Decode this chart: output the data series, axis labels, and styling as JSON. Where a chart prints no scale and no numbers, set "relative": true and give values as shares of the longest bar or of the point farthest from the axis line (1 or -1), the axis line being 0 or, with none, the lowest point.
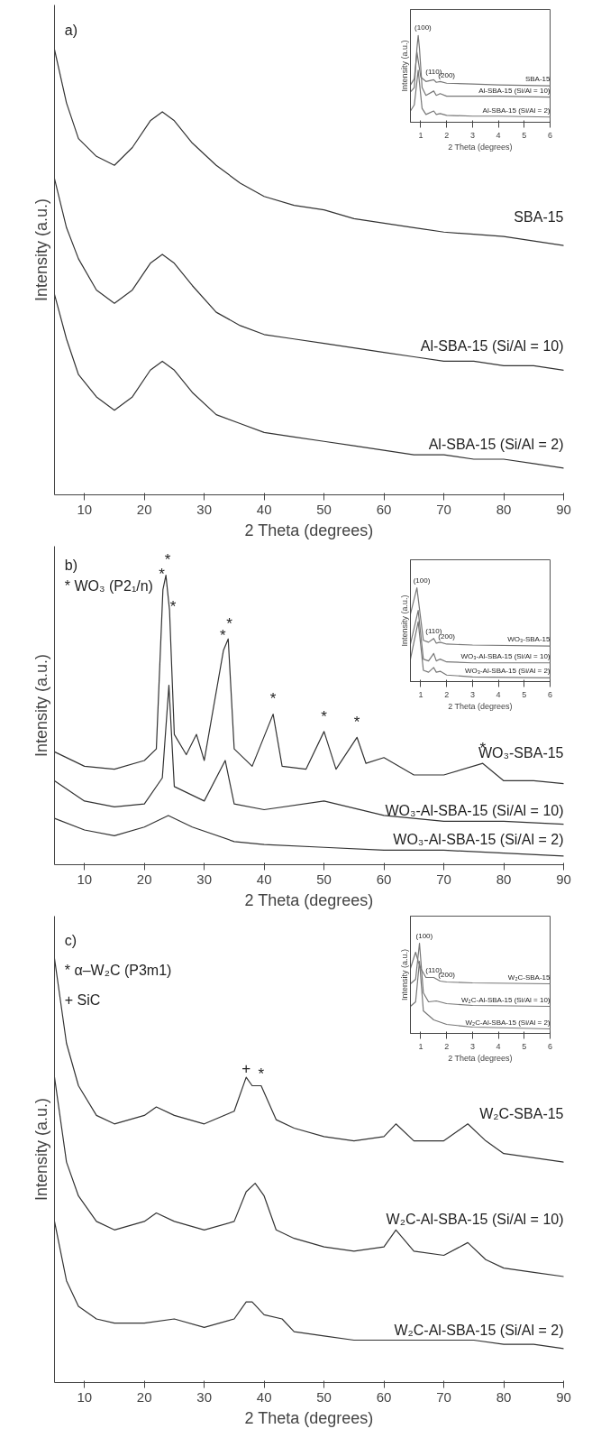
{
  "chart_data": [
    {
      "type": "line",
      "relative": true,
      "xlabel": "2 Theta (degrees)",
      "ylabel": "Intensity (a.u.)",
      "xlim": [
        5,
        90
      ],
      "xticks": [
        10,
        20,
        30,
        40,
        50,
        60,
        70,
        80,
        90
      ],
      "annotations": [
        "a)"
      ],
      "series": [
        {
          "name": "SBA-15",
          "color": "#333333",
          "x": [
            5,
            7,
            9,
            12,
            15,
            18,
            21,
            23,
            25,
            28,
            32,
            36,
            40,
            45,
            50,
            55,
            60,
            65,
            70,
            75,
            80,
            85,
            90
          ],
          "values": [
            1.0,
            0.88,
            0.8,
            0.76,
            0.74,
            0.78,
            0.84,
            0.86,
            0.84,
            0.79,
            0.74,
            0.7,
            0.67,
            0.65,
            0.64,
            0.62,
            0.61,
            0.6,
            0.59,
            0.585,
            0.58,
            0.57,
            0.56
          ]
        },
        {
          "name": "Al-SBA-15 (Si/Al = 10)",
          "color": "#333333",
          "x": [
            5,
            7,
            9,
            12,
            15,
            18,
            21,
            23,
            25,
            28,
            32,
            36,
            40,
            45,
            50,
            55,
            60,
            65,
            70,
            75,
            80,
            85,
            90
          ],
          "values": [
            0.71,
            0.6,
            0.53,
            0.46,
            0.43,
            0.46,
            0.52,
            0.54,
            0.52,
            0.47,
            0.41,
            0.38,
            0.36,
            0.35,
            0.34,
            0.33,
            0.32,
            0.31,
            0.3,
            0.3,
            0.29,
            0.29,
            0.28
          ]
        },
        {
          "name": "Al-SBA-15 (Si/Al = 2)",
          "color": "#333333",
          "x": [
            5,
            7,
            9,
            12,
            15,
            18,
            21,
            23,
            25,
            28,
            32,
            36,
            40,
            45,
            50,
            55,
            60,
            65,
            70,
            75,
            80,
            85,
            90
          ],
          "values": [
            0.45,
            0.35,
            0.27,
            0.22,
            0.19,
            0.22,
            0.28,
            0.3,
            0.28,
            0.23,
            0.18,
            0.16,
            0.14,
            0.13,
            0.12,
            0.11,
            0.1,
            0.09,
            0.09,
            0.08,
            0.08,
            0.07,
            0.06
          ]
        }
      ]
    },
    {
      "type": "line",
      "relative": true,
      "xlabel": "2 Theta (degrees)",
      "ylabel": "Intensity (a.u.)",
      "xlim": [
        0.6,
        6
      ],
      "xticks": [
        1,
        2,
        3,
        4,
        5,
        6
      ],
      "annotations": [
        {
          "text": "(100)",
          "x": 0.9,
          "y": 1.0
        },
        {
          "text": "(110)",
          "x": 1.5,
          "y": 0.49
        },
        {
          "text": "(200)",
          "x": 2,
          "y": 0.45
        }
      ],
      "series": [
        {
          "name": "SBA-15",
          "color": "#777777",
          "x": [
            0.6,
            0.75,
            0.85,
            1.0,
            1.2,
            1.5,
            1.6,
            1.75,
            2,
            3,
            4,
            6
          ],
          "values": [
            0.43,
            0.5,
            0.81,
            0.52,
            0.47,
            0.49,
            0.46,
            0.47,
            0.45,
            0.44,
            0.43,
            0.42
          ]
        },
        {
          "name": "Al-SBA-15 (Si/Al = 10)",
          "color": "#777777",
          "x": [
            0.6,
            0.75,
            0.85,
            0.9,
            0.95,
            1.05,
            1.2,
            1.5,
            1.6,
            1.75,
            2,
            3,
            4,
            6
          ],
          "values": [
            0.35,
            0.4,
            0.85,
            1.0,
            0.85,
            0.4,
            0.31,
            0.36,
            0.31,
            0.33,
            0.3,
            0.3,
            0.3,
            0.29
          ]
        },
        {
          "name": "Al-SBA-15 (Si/Al = 2)",
          "color": "#777777",
          "x": [
            0.6,
            0.75,
            0.9,
            1.05,
            1.2,
            1.5,
            1.6,
            1.75,
            2,
            3,
            4,
            6
          ],
          "values": [
            0.13,
            0.2,
            0.6,
            0.16,
            0.09,
            0.13,
            0.09,
            0.1,
            0.08,
            0.07,
            0.07,
            0.06
          ]
        }
      ]
    },
    {
      "type": "line",
      "relative": true,
      "xlabel": "2 Theta (degrees)",
      "ylabel": "Intensity (a.u.)",
      "xlim": [
        5,
        90
      ],
      "xticks": [
        10,
        20,
        30,
        40,
        50,
        60,
        70,
        80,
        90
      ],
      "annotations": [
        "b)",
        "* WO₃ (P2₁/n)",
        {
          "text": "*",
          "x": 22.9,
          "y": 0.96
        },
        {
          "text": "*",
          "x": 23.9,
          "y": 1.01
        },
        {
          "text": "*",
          "x": 24.8,
          "y": 0.85
        },
        {
          "text": "*",
          "x": 33.1,
          "y": 0.75
        },
        {
          "text": "*",
          "x": 34.2,
          "y": 0.79
        },
        {
          "text": "*",
          "x": 41.5,
          "y": 0.53
        },
        {
          "text": "*",
          "x": 50,
          "y": 0.47
        },
        {
          "text": "*",
          "x": 55.5,
          "y": 0.45
        },
        {
          "text": "*",
          "x": 76.5,
          "y": 0.36
        }
      ],
      "series": [
        {
          "name": "WO₃-SBA-15",
          "color": "#333333",
          "x": [
            5,
            10,
            15,
            20,
            22,
            23.1,
            23.6,
            24.2,
            25,
            27,
            28.7,
            30,
            33.2,
            34,
            35,
            38,
            41.5,
            43,
            47,
            50,
            52,
            55.5,
            57,
            60,
            65,
            70,
            76.5,
            80,
            85,
            90
          ],
          "values": [
            0.39,
            0.34,
            0.33,
            0.36,
            0.4,
            0.95,
            1.0,
            0.88,
            0.45,
            0.38,
            0.45,
            0.36,
            0.74,
            0.78,
            0.4,
            0.34,
            0.52,
            0.34,
            0.33,
            0.46,
            0.33,
            0.44,
            0.35,
            0.37,
            0.31,
            0.31,
            0.35,
            0.29,
            0.29,
            0.28
          ]
        },
        {
          "name": "WO₃-Al-SBA-15 (Si/Al = 10)",
          "color": "#333333",
          "x": [
            5,
            10,
            15,
            20,
            23,
            24.1,
            25,
            30,
            33.5,
            35,
            40,
            50,
            60,
            70,
            80,
            90
          ],
          "values": [
            0.29,
            0.22,
            0.2,
            0.21,
            0.3,
            0.62,
            0.27,
            0.22,
            0.36,
            0.21,
            0.19,
            0.22,
            0.17,
            0.15,
            0.15,
            0.14
          ]
        },
        {
          "name": "WO₃-Al-SBA-15 (Si/Al = 2)",
          "color": "#333333",
          "x": [
            5,
            10,
            15,
            20,
            24,
            28,
            35,
            40,
            50,
            60,
            70,
            80,
            90
          ],
          "values": [
            0.16,
            0.12,
            0.1,
            0.13,
            0.17,
            0.13,
            0.08,
            0.07,
            0.06,
            0.05,
            0.05,
            0.04,
            0.03
          ]
        }
      ]
    },
    {
      "type": "line",
      "relative": true,
      "xlabel": "2 Theta (degrees)",
      "ylabel": "Intensity (a.u.)",
      "xlim": [
        0.6,
        6
      ],
      "xticks": [
        1,
        2,
        3,
        4,
        5,
        6
      ],
      "annotations": [
        {
          "text": "(100)",
          "x": 0.85,
          "y": 1.0
        },
        {
          "text": "(110)",
          "x": 1.5,
          "y": 0.46
        },
        {
          "text": "(200)",
          "x": 2,
          "y": 0.4
        }
      ],
      "series": [
        {
          "name": "WO₃-SBA-15",
          "color": "#777777",
          "x": [
            0.6,
            0.85,
            1.1,
            1.3,
            1.5,
            1.6,
            1.75,
            2,
            3,
            6
          ],
          "values": [
            0.72,
            1.0,
            0.44,
            0.42,
            0.46,
            0.41,
            0.42,
            0.4,
            0.39,
            0.38
          ]
        },
        {
          "name": "WO₃-Al-SBA-15 (Si/Al = 10)",
          "color": "#777777",
          "x": [
            0.6,
            0.9,
            1.1,
            1.3,
            1.5,
            1.6,
            1.75,
            2,
            3,
            6
          ],
          "values": [
            0.4,
            0.76,
            0.24,
            0.22,
            0.3,
            0.22,
            0.24,
            0.21,
            0.2,
            0.2
          ]
        },
        {
          "name": "WO₃-Al-SBA-15 (Si/Al = 2)",
          "color": "#777777",
          "x": [
            0.6,
            0.9,
            1.1,
            1.3,
            1.5,
            1.6,
            1.75,
            2,
            3,
            6
          ],
          "values": [
            0.24,
            0.64,
            0.12,
            0.1,
            0.15,
            0.1,
            0.11,
            0.07,
            0.05,
            0.04
          ]
        }
      ]
    },
    {
      "type": "line",
      "relative": true,
      "xlabel": "2 Theta (degrees)",
      "ylabel": "Intensity (a.u.)",
      "xlim": [
        5,
        90
      ],
      "xticks": [
        10,
        20,
        30,
        40,
        50,
        60,
        70,
        80,
        90
      ],
      "annotations": [
        "c)",
        "* α–W₂C (P3m1)",
        "+ SiC",
        {
          "text": "+",
          "x": 37,
          "y": 0.72
        },
        {
          "text": "*",
          "x": 39.5,
          "y": 0.7
        }
      ],
      "series": [
        {
          "name": "W₂C-SBA-15",
          "color": "#333333",
          "x": [
            5,
            7,
            9,
            12,
            15,
            20,
            22,
            25,
            30,
            35,
            37,
            38,
            39.5,
            42,
            45,
            50,
            55,
            60,
            62,
            65,
            70,
            74,
            77,
            80,
            85,
            90
          ],
          "values": [
            1.0,
            0.8,
            0.7,
            0.63,
            0.61,
            0.63,
            0.65,
            0.63,
            0.61,
            0.64,
            0.72,
            0.7,
            0.7,
            0.62,
            0.6,
            0.58,
            0.57,
            0.58,
            0.61,
            0.57,
            0.57,
            0.61,
            0.57,
            0.54,
            0.53,
            0.52
          ]
        },
        {
          "name": "W₂C-Al-SBA-15 (Si/Al = 10)",
          "color": "#333333",
          "x": [
            5,
            7,
            9,
            12,
            15,
            20,
            22,
            25,
            30,
            35,
            37,
            38.5,
            40,
            42,
            45,
            50,
            55,
            60,
            62,
            65,
            70,
            74,
            77,
            80,
            85,
            90
          ],
          "values": [
            0.72,
            0.52,
            0.44,
            0.38,
            0.36,
            0.38,
            0.4,
            0.38,
            0.36,
            0.38,
            0.45,
            0.47,
            0.44,
            0.36,
            0.34,
            0.32,
            0.31,
            0.32,
            0.36,
            0.31,
            0.3,
            0.33,
            0.29,
            0.27,
            0.26,
            0.25
          ]
        },
        {
          "name": "W₂C-Al-SBA-15 (Si/Al = 2)",
          "color": "#333333",
          "x": [
            5,
            7,
            9,
            12,
            15,
            20,
            25,
            30,
            35,
            37,
            38,
            40,
            43,
            45,
            50,
            55,
            60,
            65,
            70,
            75,
            80,
            85,
            90
          ],
          "values": [
            0.38,
            0.24,
            0.18,
            0.15,
            0.14,
            0.14,
            0.15,
            0.13,
            0.15,
            0.19,
            0.19,
            0.16,
            0.15,
            0.12,
            0.11,
            0.1,
            0.1,
            0.1,
            0.1,
            0.1,
            0.09,
            0.09,
            0.08
          ]
        }
      ]
    },
    {
      "type": "line",
      "relative": true,
      "xlabel": "2 Theta (degrees)",
      "ylabel": "Intensity (a.u.)",
      "xlim": [
        0.6,
        6
      ],
      "xticks": [
        1,
        2,
        3,
        4,
        5,
        6
      ],
      "annotations": [
        {
          "text": "(100)",
          "x": 0.95,
          "y": 1.0
        },
        {
          "text": "(110)",
          "x": 1.5,
          "y": 0.62
        },
        {
          "text": "(200)",
          "x": 2,
          "y": 0.57
        }
      ],
      "series": [
        {
          "name": "W₂C-SBA-15",
          "color": "#777777",
          "x": [
            0.6,
            0.8,
            0.9,
            1.0,
            1.2,
            1.5,
            1.75,
            2,
            3,
            6
          ],
          "values": [
            0.72,
            0.9,
            0.8,
            0.72,
            0.62,
            0.62,
            0.58,
            0.57,
            0.56,
            0.55
          ]
        },
        {
          "name": "W₂C-Al-SBA-15 (Si/Al = 10)",
          "color": "#777777",
          "x": [
            0.6,
            0.8,
            0.95,
            1.1,
            1.3,
            1.6,
            2,
            3,
            6
          ],
          "values": [
            0.55,
            0.6,
            1.0,
            0.45,
            0.35,
            0.36,
            0.33,
            0.31,
            0.3
          ]
        },
        {
          "name": "W₂C-Al-SBA-15 (Si/Al = 2)",
          "color": "#777777",
          "x": [
            0.6,
            0.8,
            0.95,
            1.1,
            1.5,
            2,
            3,
            6
          ],
          "values": [
            0.3,
            0.35,
            0.8,
            0.25,
            0.15,
            0.1,
            0.07,
            0.05
          ]
        }
      ]
    }
  ]
}
